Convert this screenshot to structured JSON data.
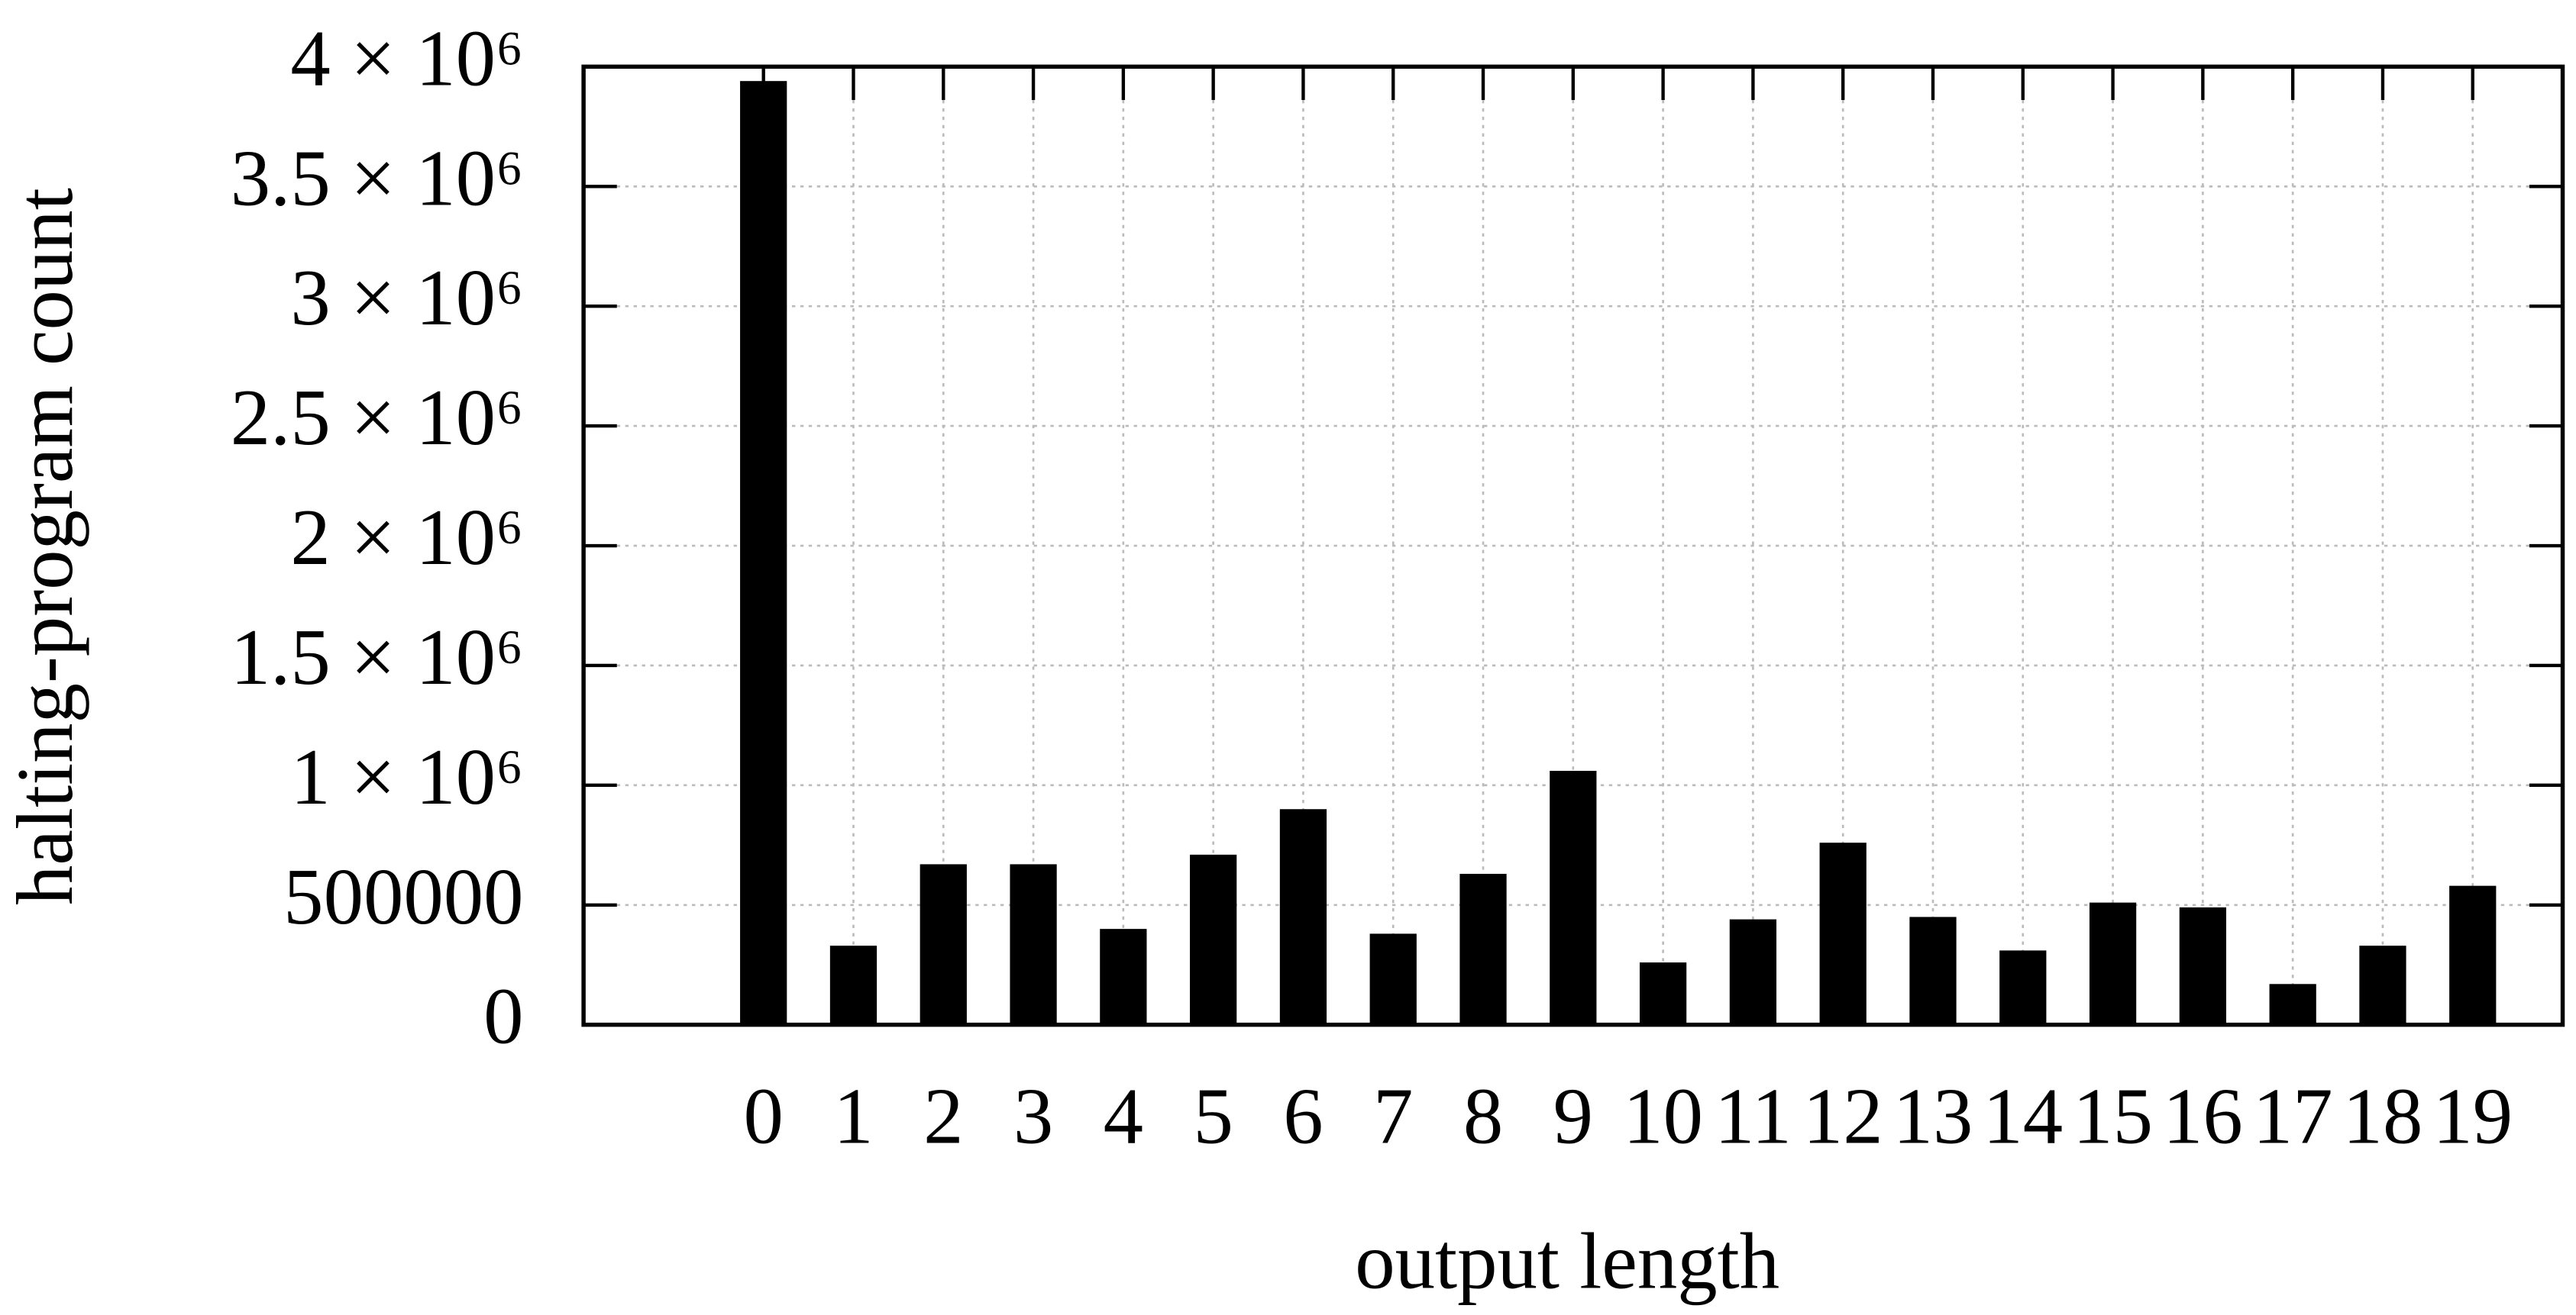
{
  "chart_data": {
    "type": "bar",
    "x": [
      0,
      1,
      2,
      3,
      4,
      5,
      6,
      7,
      8,
      9,
      10,
      11,
      12,
      13,
      14,
      15,
      16,
      17,
      18,
      19
    ],
    "values": [
      3940000,
      330000,
      670000,
      670000,
      400000,
      710000,
      900000,
      380000,
      630000,
      1060000,
      260000,
      440000,
      760000,
      450000,
      310000,
      510000,
      490000,
      170000,
      330000,
      580000
    ],
    "color": "#000000",
    "xlabel": "output length",
    "ylabel": "halting-program count",
    "xlim": [
      -2,
      20
    ],
    "xticks": [
      0,
      1,
      2,
      3,
      4,
      5,
      6,
      7,
      8,
      9,
      10,
      11,
      12,
      13,
      14,
      15,
      16,
      17,
      18,
      19
    ],
    "ylim": [
      0,
      4000000
    ],
    "yticks": [
      0,
      500000,
      {
        "value": 1000000,
        "label": "1 × 10⁶"
      },
      {
        "value": 1500000,
        "label": "1.5 × 10⁶"
      },
      {
        "value": 2000000,
        "label": "2 × 10⁶"
      },
      {
        "value": 2500000,
        "label": "2.5 × 10⁶"
      },
      {
        "value": 3000000,
        "label": "3 × 10⁶"
      },
      {
        "value": 3500000,
        "label": "3.5 × 10⁶"
      },
      {
        "value": 4000000,
        "label": "4 × 10⁶"
      }
    ],
    "grid": true
  }
}
